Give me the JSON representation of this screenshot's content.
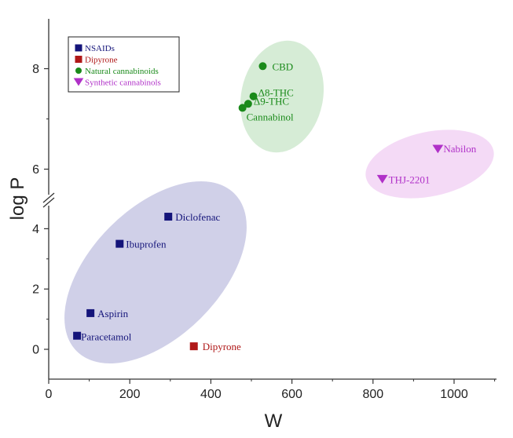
{
  "chart_data": {
    "type": "scatter",
    "xlabel": "W",
    "ylabel": "log P",
    "xlim": [
      0,
      1100
    ],
    "y_axis_broken": true,
    "y_lower_range": [
      -0.5,
      5
    ],
    "y_upper_range": [
      5.5,
      9
    ],
    "x_ticks": [
      "0",
      "200",
      "400",
      "600",
      "800",
      "1000"
    ],
    "y_ticks_lower": [
      "0",
      "2",
      "4"
    ],
    "y_ticks_upper": [
      "6",
      "8"
    ],
    "legend_position": "top-left",
    "series": [
      {
        "name": "NSAIDs",
        "marker": "square",
        "color": "#14147a",
        "points": [
          {
            "label": "Paracetamol",
            "x": 70,
            "y": 0.45
          },
          {
            "label": "Aspirin",
            "x": 103,
            "y": 1.2
          },
          {
            "label": "Ibuprofen",
            "x": 175,
            "y": 3.5
          },
          {
            "label": "Diclofenac",
            "x": 295,
            "y": 4.4
          }
        ]
      },
      {
        "name": "Dipyrone",
        "marker": "square",
        "color": "#b01818",
        "points": [
          {
            "label": "Dipyrone",
            "x": 358,
            "y": 0.1
          }
        ]
      },
      {
        "name": "Natural cannabinoids",
        "marker": "circle",
        "color": "#1a8a1a",
        "points": [
          {
            "label": "CBD",
            "x": 528,
            "y": 8.05
          },
          {
            "label": "Δ8-THC",
            "x": 505,
            "y": 7.45
          },
          {
            "label": "Δ9-THC",
            "x": 492,
            "y": 7.3
          },
          {
            "label": "Cannabinol",
            "x": 478,
            "y": 7.22
          }
        ]
      },
      {
        "name": "Synthetic cannabinols",
        "marker": "triangle-down",
        "color": "#b030c8",
        "points": [
          {
            "label": "Nabilon",
            "x": 960,
            "y": 6.4
          },
          {
            "label": "THJ-2201",
            "x": 823,
            "y": 5.8
          }
        ]
      }
    ],
    "groups": [
      {
        "series": "NSAIDs",
        "color": "#c8c8e4"
      },
      {
        "series": "Natural cannabinoids",
        "color": "#cfe9cf"
      },
      {
        "series": "Synthetic cannabinols",
        "color": "#f2d4f4"
      }
    ]
  }
}
